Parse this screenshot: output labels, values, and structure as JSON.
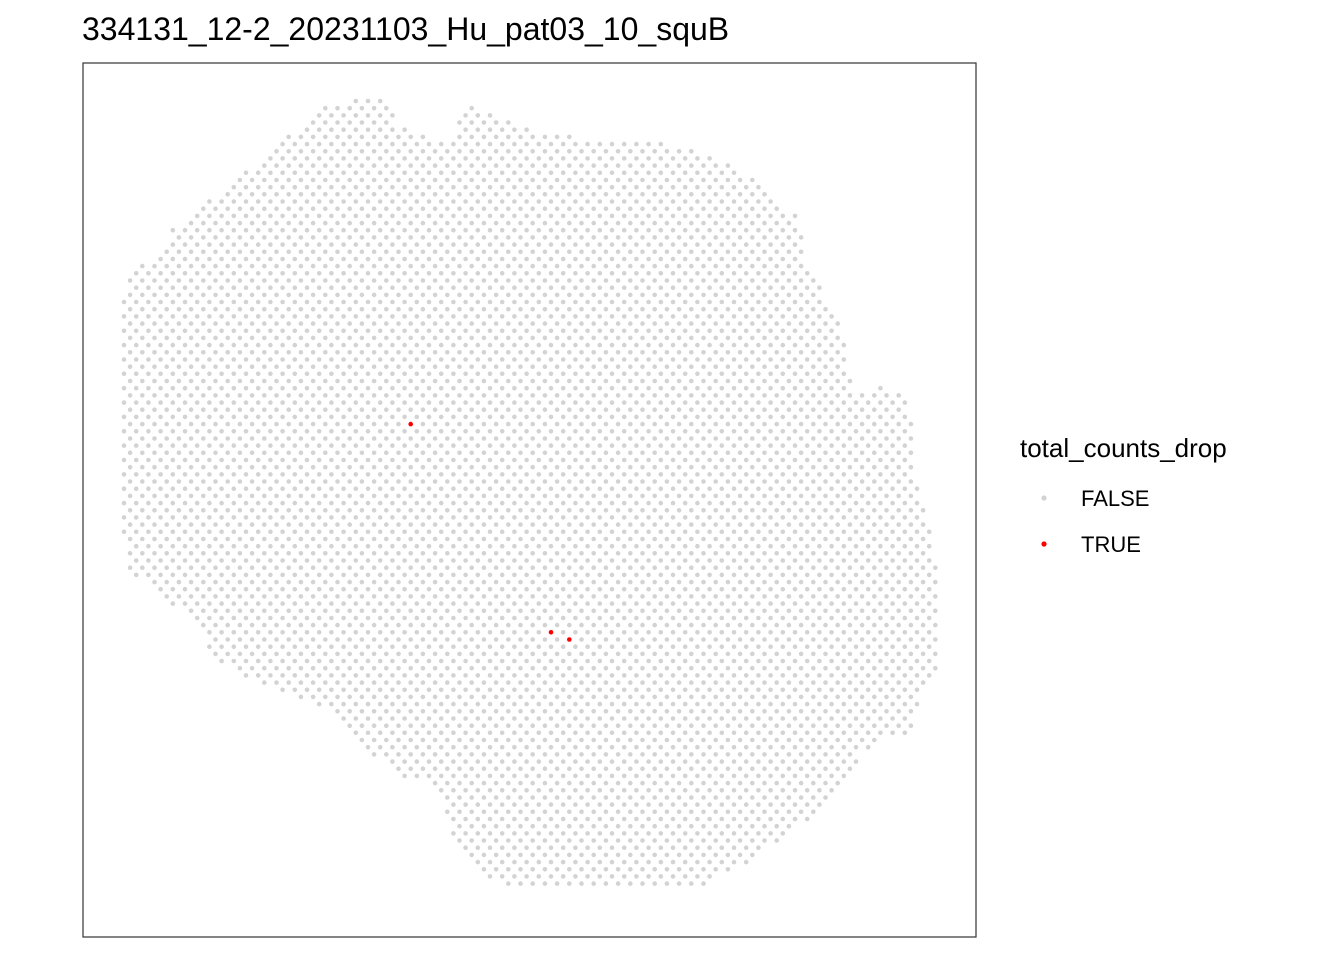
{
  "chart_data": {
    "type": "scatter",
    "title": "334131_12-2_20231103_Hu_pat03_10_squB",
    "xlabel": "",
    "ylabel": "",
    "axes_visible": false,
    "grid": false,
    "legend": {
      "title": "total_counts_drop",
      "position": "right",
      "entries": [
        {
          "label": "FALSE",
          "color": "#d3d3d3"
        },
        {
          "label": "TRUE",
          "color": "#ff0000"
        }
      ]
    },
    "series": [
      {
        "name": "FALSE",
        "color": "#d3d3d3",
        "description": "Hexagonal spot grid forming the tissue outline; rendered from polygon mask"
      },
      {
        "name": "TRUE",
        "color": "#ff0000",
        "points": [
          [
            23,
            45
          ],
          [
            35,
            74
          ],
          [
            36,
            75
          ]
        ]
      }
    ]
  }
}
